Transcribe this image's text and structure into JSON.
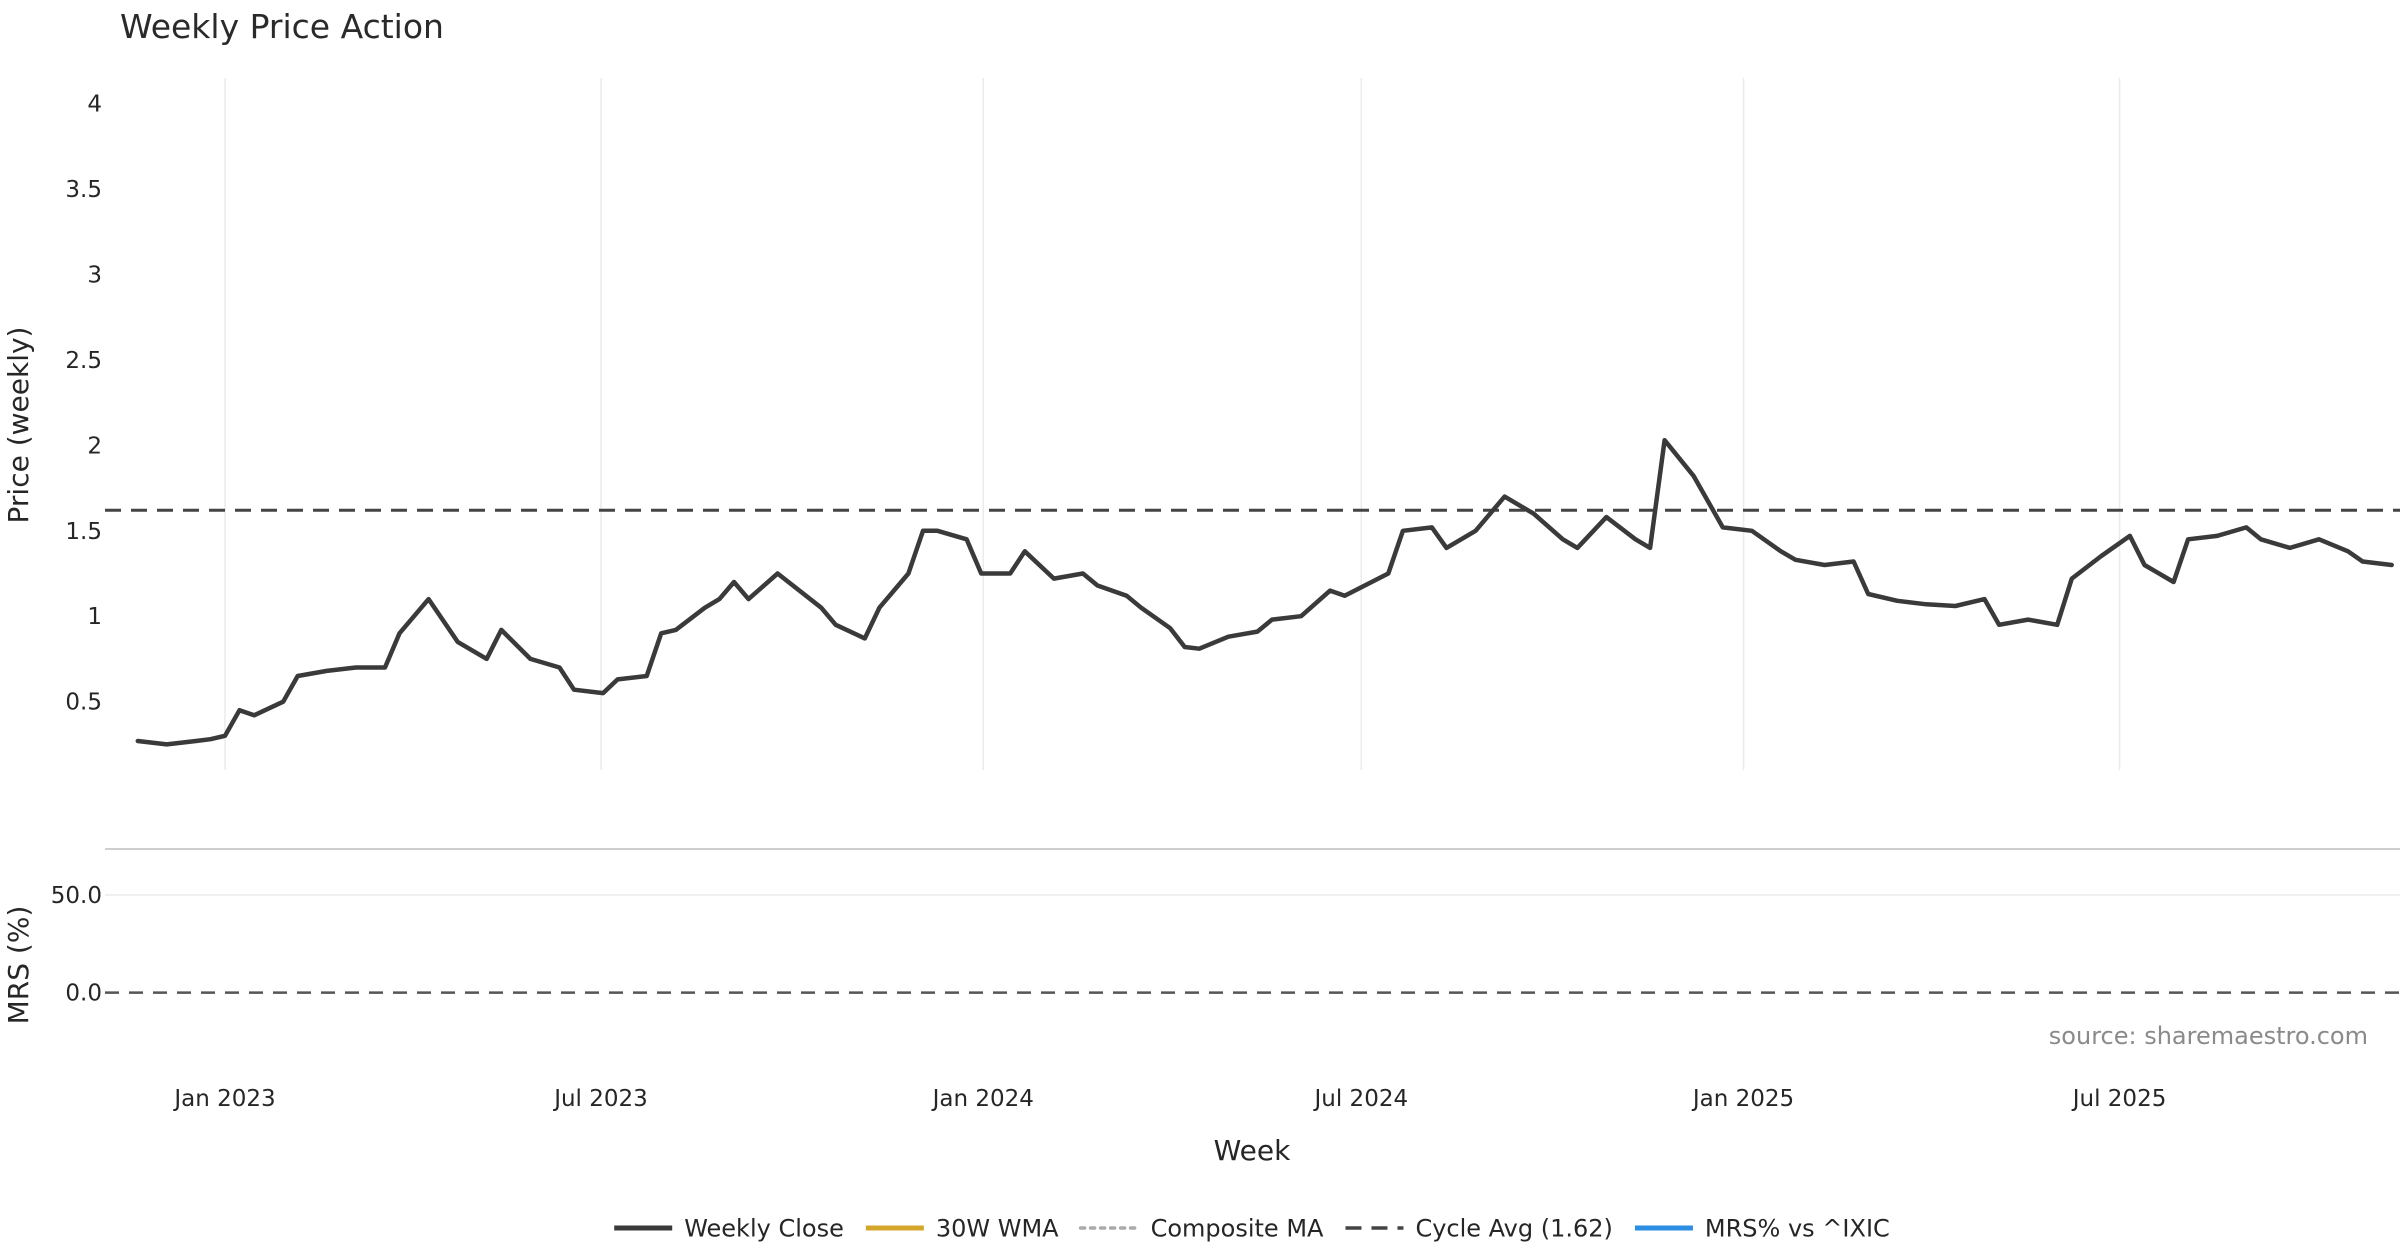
{
  "chart_data": {
    "type": "line",
    "title": "Weekly Price Action",
    "source_note": "source: sharemaestro.com",
    "x_axis": {
      "label": "Week",
      "range": [
        "2022-11-20",
        "2025-11-24"
      ],
      "tick_dates": [
        "2023-01-01",
        "2023-07-01",
        "2024-01-01",
        "2024-07-01",
        "2025-01-01",
        "2025-07-01"
      ],
      "tick_labels": [
        "Jan 2023",
        "Jul 2023",
        "Jan 2024",
        "Jul 2024",
        "Jan 2025",
        "Jul 2025"
      ]
    },
    "price_panel": {
      "ylabel": "Price (weekly)",
      "ylim": [
        0.1,
        4.15
      ],
      "yticks": [
        0.5,
        1,
        1.5,
        2,
        2.5,
        3,
        3.5,
        4
      ],
      "ytick_labels": [
        "0.5",
        "1",
        "1.5",
        "2",
        "2.5",
        "3",
        "3.5",
        "4"
      ],
      "grid": "vertical",
      "cycle_avg": 1.62
    },
    "mrs_panel": {
      "ylabel": "MRS (%)",
      "ylim": [
        -37,
        73
      ],
      "yticks": [
        0,
        50
      ],
      "ytick_labels": [
        "0.0",
        "50.0"
      ],
      "zero_line": true
    },
    "legend": {
      "placement": "bottom-center",
      "entries": [
        {
          "label": "Weekly Close",
          "color": "#3a3a3a",
          "style": "solid"
        },
        {
          "label": "30W WMA",
          "color": "#d4a72c",
          "style": "solid"
        },
        {
          "label": "Composite MA",
          "color": "#aaaaaa",
          "style": "dotted"
        },
        {
          "label": "Cycle Avg (1.62)",
          "color": "#444444",
          "style": "dashed"
        },
        {
          "label": "MRS% vs ^IXIC",
          "color": "#2b8ee3",
          "style": "solid"
        }
      ]
    },
    "colors": {
      "close": "#3a3a3a",
      "wma": "#d4a72c",
      "composite": "#aaaaaa",
      "cycle": "#444444",
      "mrs": "#2b8ee3",
      "buy": "#1e9e1e",
      "sell": "#c01515"
    },
    "series": [
      {
        "name": "Weekly Close",
        "key": "close",
        "points": [
          [
            "2022-11-20",
            0.27
          ],
          [
            "2022-12-04",
            0.25
          ],
          [
            "2022-12-18",
            0.27
          ],
          [
            "2022-12-25",
            0.28
          ],
          [
            "2023-01-01",
            0.3
          ],
          [
            "2023-01-08",
            0.45
          ],
          [
            "2023-01-15",
            0.42
          ],
          [
            "2023-01-29",
            0.5
          ],
          [
            "2023-02-05",
            0.65
          ],
          [
            "2023-02-19",
            0.68
          ],
          [
            "2023-03-05",
            0.7
          ],
          [
            "2023-03-19",
            0.7
          ],
          [
            "2023-03-26",
            0.9
          ],
          [
            "2023-04-09",
            1.1
          ],
          [
            "2023-04-23",
            0.85
          ],
          [
            "2023-05-07",
            0.75
          ],
          [
            "2023-05-14",
            0.92
          ],
          [
            "2023-05-28",
            0.75
          ],
          [
            "2023-06-11",
            0.7
          ],
          [
            "2023-06-18",
            0.57
          ],
          [
            "2023-07-02",
            0.55
          ],
          [
            "2023-07-09",
            0.63
          ],
          [
            "2023-07-23",
            0.65
          ],
          [
            "2023-07-30",
            0.9
          ],
          [
            "2023-08-06",
            0.92
          ],
          [
            "2023-08-20",
            1.05
          ],
          [
            "2023-08-27",
            1.1
          ],
          [
            "2023-09-03",
            1.2
          ],
          [
            "2023-09-10",
            1.1
          ],
          [
            "2023-09-24",
            1.25
          ],
          [
            "2023-10-15",
            1.05
          ],
          [
            "2023-10-22",
            0.95
          ],
          [
            "2023-11-05",
            0.87
          ],
          [
            "2023-11-12",
            1.05
          ],
          [
            "2023-11-26",
            1.25
          ],
          [
            "2023-12-03",
            1.5
          ],
          [
            "2023-12-10",
            1.5
          ],
          [
            "2023-12-24",
            1.45
          ],
          [
            "2023-12-31",
            1.25
          ],
          [
            "2024-01-14",
            1.25
          ],
          [
            "2024-01-21",
            1.38
          ],
          [
            "2024-02-04",
            1.22
          ],
          [
            "2024-02-18",
            1.25
          ],
          [
            "2024-02-25",
            1.18
          ],
          [
            "2024-03-10",
            1.12
          ],
          [
            "2024-03-17",
            1.05
          ],
          [
            "2024-03-31",
            0.93
          ],
          [
            "2024-04-07",
            0.82
          ],
          [
            "2024-04-14",
            0.81
          ],
          [
            "2024-04-28",
            0.88
          ],
          [
            "2024-05-12",
            0.91
          ],
          [
            "2024-05-19",
            0.98
          ],
          [
            "2024-06-02",
            1.0
          ],
          [
            "2024-06-16",
            1.15
          ],
          [
            "2024-06-23",
            1.12
          ],
          [
            "2024-07-14",
            1.25
          ],
          [
            "2024-07-21",
            1.5
          ],
          [
            "2024-08-04",
            1.52
          ],
          [
            "2024-08-11",
            1.4
          ],
          [
            "2024-08-25",
            1.5
          ],
          [
            "2024-09-08",
            1.7
          ],
          [
            "2024-09-22",
            1.6
          ],
          [
            "2024-10-06",
            1.45
          ],
          [
            "2024-10-13",
            1.4
          ],
          [
            "2024-10-27",
            1.58
          ],
          [
            "2024-11-10",
            1.45
          ],
          [
            "2024-11-17",
            1.4
          ],
          [
            "2024-11-24",
            2.03
          ],
          [
            "2024-12-08",
            1.82
          ],
          [
            "2024-12-22",
            1.52
          ],
          [
            "2025-01-05",
            1.5
          ],
          [
            "2025-01-19",
            1.38
          ],
          [
            "2025-01-26",
            1.33
          ],
          [
            "2025-02-09",
            1.3
          ],
          [
            "2025-02-23",
            1.32
          ],
          [
            "2025-03-02",
            1.13
          ],
          [
            "2025-03-16",
            1.09
          ],
          [
            "2025-03-30",
            1.07
          ],
          [
            "2025-04-13",
            1.06
          ],
          [
            "2025-04-27",
            1.1
          ],
          [
            "2025-05-04",
            0.95
          ],
          [
            "2025-05-18",
            0.98
          ],
          [
            "2025-06-01",
            0.95
          ],
          [
            "2025-06-08",
            1.22
          ],
          [
            "2025-06-22",
            1.35
          ],
          [
            "2025-07-06",
            1.47
          ],
          [
            "2025-07-13",
            1.3
          ],
          [
            "2025-07-27",
            1.2
          ],
          [
            "2025-08-03",
            1.45
          ],
          [
            "2025-08-17",
            1.47
          ],
          [
            "2025-08-31",
            1.52
          ],
          [
            "2025-09-07",
            1.45
          ],
          [
            "2025-09-21",
            1.4
          ],
          [
            "2025-10-05",
            1.45
          ],
          [
            "2025-10-19",
            1.38
          ],
          [
            "2025-10-26",
            1.32
          ],
          [
            "2025-11-09",
            1.3
          ]
        ]
      }
    ]
  }
}
